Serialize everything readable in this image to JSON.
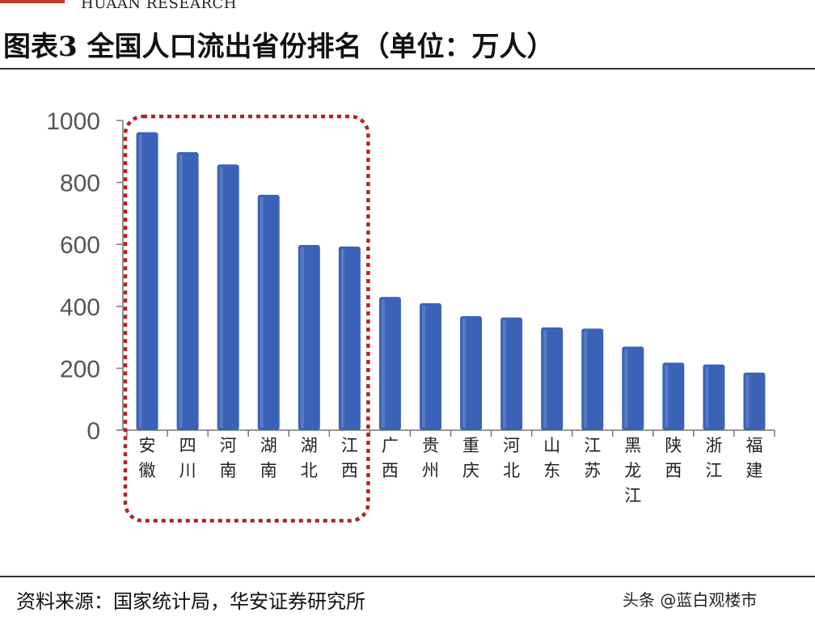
{
  "header": {
    "brand": "HUAAN RESEARCH"
  },
  "figure": {
    "title": "图表3 全国人口流出省份排名（单位：万人）",
    "source": "资料来源：国家统计局，华安证券研究所",
    "watermark": "头条 @蓝白观楼市"
  },
  "chart_data": {
    "type": "bar",
    "title": "图表3 全国人口流出省份排名（单位：万人）",
    "xlabel": "",
    "ylabel": "",
    "categories": [
      "安徽",
      "四川",
      "河南",
      "湖南",
      "湖北",
      "江西",
      "广西",
      "贵州",
      "重庆",
      "河北",
      "山东",
      "江苏",
      "黑龙江",
      "陕西",
      "浙江",
      "福建"
    ],
    "series": [
      {
        "values": [
          962,
          898,
          858,
          760,
          598,
          593,
          430,
          410,
          368,
          364,
          332,
          328,
          270,
          218,
          212,
          186
        ]
      }
    ],
    "ylim": [
      0,
      1000
    ],
    "yticks": [
      0,
      200,
      400,
      600,
      800,
      1000
    ],
    "highlight_categories": [
      "安徽",
      "四川",
      "河南",
      "湖南",
      "湖北",
      "江西"
    ],
    "bar_color": "#3a63b8",
    "highlight_border_color": "#b22222",
    "grid": false,
    "legend": "none"
  }
}
